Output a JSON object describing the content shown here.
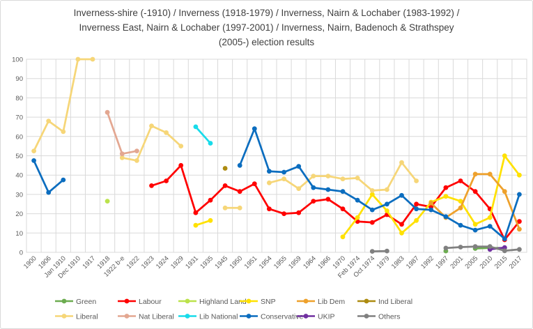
{
  "title": {
    "line1": "Inverness-shire (-1910) / Inverness (1918-1979) / Inverness, Nairn & Lochaber (1983-1992) /",
    "line2": "Inverness East, Nairn & Lochaber (1997-2001) / Inverness, Nairn, Badenoch & Strathspey",
    "line3": "(2005-) election results"
  },
  "chart_data": {
    "type": "line",
    "title": "Inverness-shire (-1910) / Inverness (1918-1979) / Inverness, Nairn & Lochaber (1983-1992) / Inverness East, Nairn & Lochaber (1997-2001) / Inverness, Nairn, Badenoch & Strathspey (2005-) election results",
    "xlabel": "",
    "ylabel": "",
    "ylim": [
      0,
      100
    ],
    "y_step": 10,
    "y_tick_labels": [
      "0",
      "10",
      "20",
      "30",
      "40",
      "50",
      "60",
      "70",
      "80",
      "90",
      "100"
    ],
    "grid": true,
    "legend_position": "bottom",
    "categories": [
      "1900",
      "1906",
      "Jan 1910",
      "Dec 1910",
      "1917",
      "1918",
      "1922 b-e",
      "1922",
      "1923",
      "1924",
      "1929",
      "1931",
      "1935",
      "1945",
      "1950",
      "1951",
      "1954",
      "1955",
      "1959",
      "1964",
      "1966",
      "1970",
      "Feb 1974",
      "Oct 1974",
      "1979",
      "1983",
      "1987",
      "1992",
      "1997",
      "2001",
      "2005",
      "2010",
      "2015",
      "2017"
    ],
    "series": [
      {
        "name": "Green",
        "color": "#6CAC50",
        "values": [
          null,
          null,
          null,
          null,
          null,
          null,
          null,
          null,
          null,
          null,
          null,
          null,
          null,
          null,
          null,
          null,
          null,
          null,
          null,
          null,
          null,
          null,
          null,
          null,
          null,
          null,
          null,
          null,
          0.7,
          null,
          2,
          2.3,
          2.2,
          null
        ]
      },
      {
        "name": "Labour",
        "color": "#FF0000",
        "values": [
          null,
          null,
          null,
          null,
          null,
          null,
          null,
          null,
          34.5,
          37,
          45,
          20.5,
          27,
          34.5,
          31.5,
          35.5,
          22.5,
          20,
          20.5,
          26.5,
          27.5,
          22.5,
          16,
          15.5,
          19.5,
          14.5,
          25,
          23.5,
          33.5,
          37,
          31.5,
          22.5,
          6.5,
          16
        ]
      },
      {
        "name": "Highland Land",
        "color": "#BBE24B",
        "values": [
          null,
          null,
          null,
          null,
          null,
          26.5,
          null,
          null,
          null,
          null,
          null,
          null,
          null,
          null,
          null,
          null,
          null,
          null,
          null,
          null,
          null,
          null,
          null,
          null,
          null,
          null,
          null,
          null,
          null,
          null,
          null,
          null,
          null,
          null
        ]
      },
      {
        "name": "SNP",
        "color": "#FFE100",
        "values": [
          null,
          null,
          null,
          null,
          null,
          null,
          null,
          null,
          null,
          null,
          null,
          14,
          16.5,
          null,
          null,
          null,
          null,
          null,
          null,
          null,
          null,
          8,
          18,
          30,
          21.5,
          10,
          16.5,
          26,
          29,
          26.5,
          14.5,
          18,
          50,
          40
        ]
      },
      {
        "name": "Lib Dem",
        "color": "#EEA12C",
        "values": [
          null,
          null,
          null,
          null,
          null,
          null,
          null,
          null,
          null,
          null,
          null,
          null,
          null,
          null,
          null,
          null,
          null,
          null,
          null,
          null,
          null,
          null,
          null,
          null,
          null,
          null,
          null,
          25.5,
          18,
          23,
          40.5,
          40.5,
          31.5,
          12
        ]
      },
      {
        "name": "Ind Liberal",
        "color": "#AD8B10",
        "values": [
          null,
          null,
          null,
          null,
          null,
          null,
          null,
          null,
          null,
          null,
          null,
          null,
          null,
          43.5,
          null,
          null,
          null,
          null,
          null,
          null,
          null,
          null,
          null,
          null,
          null,
          null,
          null,
          null,
          null,
          null,
          null,
          null,
          null,
          null
        ]
      },
      {
        "name": "Liberal",
        "color": "#F6D678",
        "values": [
          52.5,
          68,
          62.5,
          100,
          100,
          null,
          49,
          47.5,
          65.5,
          62,
          55,
          null,
          null,
          23,
          23,
          null,
          36,
          38,
          33,
          39.5,
          39.5,
          38,
          38.5,
          32,
          32.5,
          46.5,
          37,
          null,
          null,
          null,
          null,
          null,
          null,
          null
        ]
      },
      {
        "name": "Nat Liberal",
        "color": "#E3A791",
        "values": [
          null,
          null,
          null,
          null,
          null,
          72.5,
          51,
          52.5,
          null,
          null,
          null,
          null,
          null,
          null,
          null,
          null,
          null,
          null,
          null,
          null,
          null,
          null,
          null,
          null,
          null,
          null,
          null,
          null,
          null,
          null,
          null,
          null,
          null,
          null
        ]
      },
      {
        "name": "Lib National",
        "color": "#18DBEA",
        "values": [
          null,
          null,
          null,
          null,
          null,
          null,
          null,
          null,
          null,
          null,
          null,
          65,
          56.5,
          null,
          null,
          null,
          null,
          null,
          null,
          null,
          null,
          null,
          null,
          null,
          null,
          null,
          null,
          null,
          null,
          null,
          null,
          null,
          null,
          null
        ]
      },
      {
        "name": "Conservative",
        "color": "#0B6DBF",
        "values": [
          47.5,
          31,
          37.5,
          null,
          null,
          null,
          null,
          null,
          null,
          null,
          null,
          null,
          null,
          null,
          45,
          64,
          42,
          41.5,
          44.5,
          33.5,
          32.5,
          31.5,
          27,
          22,
          25,
          29.5,
          22.5,
          22,
          18.5,
          14,
          11.5,
          13.5,
          7,
          30
        ]
      },
      {
        "name": "UKIP",
        "color": "#7030A0",
        "values": [
          null,
          null,
          null,
          null,
          null,
          null,
          null,
          null,
          null,
          null,
          null,
          null,
          null,
          null,
          null,
          null,
          null,
          null,
          null,
          null,
          null,
          null,
          null,
          null,
          null,
          null,
          null,
          null,
          null,
          null,
          null,
          1.5,
          2.5,
          null
        ]
      },
      {
        "name": "Others",
        "color": "#808080",
        "values": [
          null,
          null,
          null,
          null,
          null,
          null,
          null,
          null,
          null,
          null,
          null,
          null,
          null,
          null,
          null,
          null,
          null,
          null,
          null,
          null,
          null,
          null,
          null,
          0.5,
          0.7,
          null,
          null,
          null,
          2.2,
          2.7,
          3,
          3,
          0.8,
          1.5
        ]
      }
    ]
  },
  "colors": {
    "grid": "#D9D9D9",
    "axis_text": "#595959",
    "title_text": "#3F3F3F",
    "background": "#FFFFFF"
  }
}
